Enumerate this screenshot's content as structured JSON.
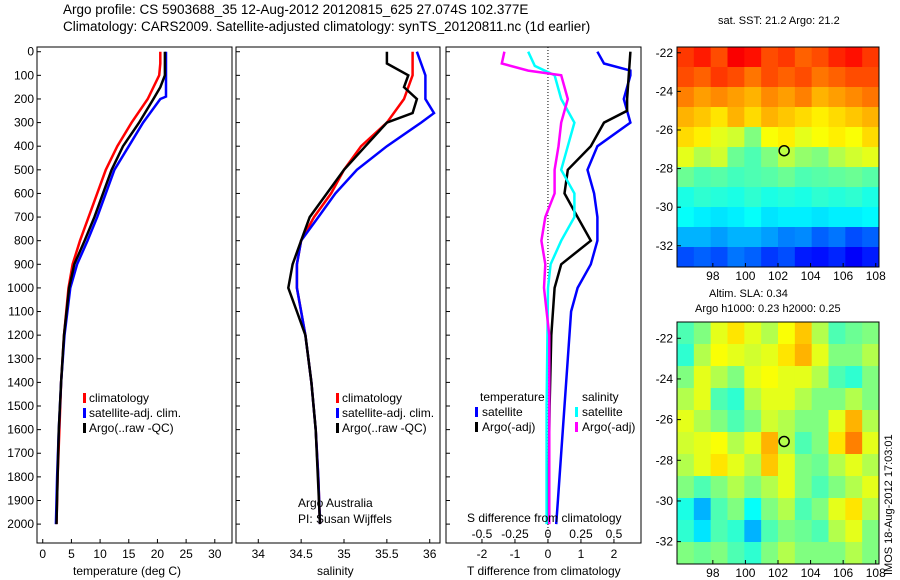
{
  "title": {
    "line1": "Argo profile: CS 5903688_35 12-Aug-2012 20120815_625 27.074S 102.377E",
    "line2": "Climatology: CARS2009. Satellite-adjusted climatology: synTS_20120811.nc (1d earlier)"
  },
  "colors": {
    "climatology": "#ff0000",
    "satellite": "#0000ff",
    "argo": "#000000",
    "sal_sat": "#00ffff",
    "sal_argo": "#ff00ff"
  },
  "chart_data": [
    {
      "type": "line",
      "name": "temperature",
      "xlabel": "temperature (deg C)",
      "xlim": [
        -1,
        33
      ],
      "ylim": [
        2080,
        -20
      ],
      "xticks": [
        0,
        5,
        10,
        15,
        20,
        25,
        30
      ],
      "yticks": [
        0,
        100,
        200,
        300,
        400,
        500,
        600,
        700,
        800,
        900,
        1000,
        1100,
        1200,
        1300,
        1400,
        1500,
        1600,
        1700,
        1800,
        1900,
        2000
      ],
      "legend": [
        "climatology",
        "satellite-adj. clim.",
        "Argo(..raw -QC)"
      ],
      "series": [
        {
          "name": "climatology",
          "color": "#ff0000",
          "depth": [
            0,
            50,
            100,
            200,
            300,
            400,
            500,
            600,
            700,
            800,
            900,
            1000,
            1200,
            1400,
            1600,
            1800,
            2000
          ],
          "values": [
            20.5,
            20.5,
            20.3,
            18.3,
            15.5,
            13,
            11,
            9.5,
            8,
            6.5,
            5.2,
            4.5,
            3.7,
            3.2,
            2.9,
            2.6,
            2.4
          ]
        },
        {
          "name": "satellite-adj. clim.",
          "color": "#0000ff",
          "depth": [
            0,
            190,
            200,
            300,
            400,
            500,
            600,
            700,
            800,
            900,
            1000,
            1200,
            1400,
            1600,
            1800,
            2000
          ],
          "values": [
            21.5,
            21.5,
            20.5,
            17.5,
            15,
            12.5,
            11,
            9.5,
            7.8,
            6,
            4.8,
            3.8,
            3.2,
            2.8,
            2.5,
            2.3
          ]
        },
        {
          "name": "Argo(..raw -QC)",
          "color": "#000000",
          "depth": [
            0,
            100,
            150,
            200,
            300,
            400,
            500,
            600,
            700,
            800,
            900,
            1000,
            1200,
            1400,
            1600,
            1800,
            2000
          ],
          "values": [
            21.3,
            21.3,
            20.5,
            19.3,
            16.8,
            14,
            12,
            10.5,
            9,
            7.3,
            5.5,
            4.6,
            3.7,
            3.2,
            2.8,
            2.6,
            2.4
          ]
        }
      ]
    },
    {
      "type": "line",
      "name": "salinity",
      "xlabel": "salinity",
      "xlim": [
        33.74,
        36.12
      ],
      "ylim": [
        2080,
        -20
      ],
      "xticks": [
        34,
        34.5,
        35,
        35.5,
        36
      ],
      "legend": [
        "climatology",
        "satellite-adj. clim.",
        "Argo(..raw -QC)"
      ],
      "annotation": [
        "Argo Australia",
        "PI: Susan Wijffels"
      ],
      "series": [
        {
          "name": "climatology",
          "color": "#ff0000",
          "depth": [
            0,
            100,
            200,
            300,
            400,
            500,
            600,
            700,
            800,
            900,
            1000,
            1200,
            1400,
            1600,
            1800,
            2000
          ],
          "values": [
            35.8,
            35.8,
            35.7,
            35.5,
            35.2,
            35.0,
            34.85,
            34.65,
            34.5,
            34.45,
            34.45,
            34.55,
            34.62,
            34.67,
            34.7,
            34.72
          ]
        },
        {
          "name": "satellite-adj. clim.",
          "color": "#0000ff",
          "depth": [
            0,
            100,
            200,
            260,
            300,
            400,
            500,
            600,
            700,
            800,
            900,
            1000,
            1200,
            1400,
            1600,
            1800,
            2000
          ],
          "values": [
            35.85,
            35.95,
            35.95,
            36.05,
            35.9,
            35.5,
            35.15,
            34.9,
            34.7,
            34.5,
            34.45,
            34.45,
            34.55,
            34.62,
            34.67,
            34.7,
            34.72
          ]
        },
        {
          "name": "Argo(..raw -QC)",
          "color": "#000000",
          "depth": [
            0,
            50,
            100,
            150,
            200,
            260,
            300,
            400,
            500,
            600,
            700,
            800,
            900,
            1000,
            1100,
            1200,
            1400,
            1600,
            2000
          ],
          "values": [
            35.5,
            35.5,
            35.75,
            35.7,
            35.85,
            35.8,
            35.5,
            35.25,
            35,
            34.8,
            34.6,
            34.5,
            34.4,
            34.35,
            34.45,
            34.55,
            34.62,
            34.67,
            34.72
          ]
        }
      ]
    },
    {
      "type": "line",
      "name": "differences",
      "xlabel": "T difference from climatology",
      "xlabel2": "S difference from climatology",
      "xlim": [
        -3.09,
        2.82
      ],
      "ylim": [
        2080,
        -20
      ],
      "xticks": [
        -2,
        -1,
        0,
        1,
        2
      ],
      "xticks2": [
        -0.5,
        -0.25,
        0,
        0.25,
        0.5
      ],
      "legend": {
        "temperature": "temperature",
        "salinity": "salinity",
        "t_sat": "satellite",
        "t_argo": "Argo(-adj)",
        "s_sat": "satellite",
        "s_argo": "Argo(-adj)"
      },
      "series": [
        {
          "name": "T satellite",
          "color": "#0000ff",
          "scale": 1,
          "depth": [
            0,
            50,
            80,
            100,
            200,
            300,
            400,
            500,
            600,
            700,
            800,
            900,
            1000,
            1100,
            1300,
            1500,
            1700,
            1900,
            2000
          ],
          "values": [
            1.5,
            1.7,
            2.5,
            2.5,
            2.3,
            2.5,
            1.5,
            1.2,
            1.4,
            1.5,
            1.5,
            1.3,
            0.9,
            0.7,
            0.6,
            0.5,
            0.4,
            0.3,
            0.25
          ]
        },
        {
          "name": "T Argo(-adj)",
          "color": "#000000",
          "scale": 1,
          "depth": [
            0,
            200,
            250,
            300,
            400,
            500,
            600,
            700,
            800,
            900,
            1000,
            1200,
            1500,
            2000
          ],
          "values": [
            2.5,
            2.4,
            2.4,
            1.7,
            1.3,
            0.6,
            0.5,
            0.9,
            1.3,
            0.4,
            0.2,
            0.1,
            0.05,
            0
          ]
        },
        {
          "name": "S satellite",
          "color": "#00ffff",
          "scale": 4,
          "depth": [
            0,
            60,
            100,
            200,
            300,
            400,
            500,
            600,
            700,
            800,
            900,
            1000,
            1500,
            2000
          ],
          "values": [
            -0.15,
            -0.1,
            0.05,
            0.1,
            0.2,
            0.15,
            0.1,
            0.2,
            0.2,
            0.1,
            0.02,
            0,
            -0.01,
            -0.01
          ]
        },
        {
          "name": "S Argo(-adj)",
          "color": "#ff00ff",
          "scale": 4,
          "depth": [
            0,
            50,
            80,
            100,
            200,
            300,
            400,
            500,
            600,
            700,
            800,
            900,
            1000,
            1100,
            1200,
            2000
          ],
          "values": [
            -0.33,
            -0.35,
            -0.15,
            0.1,
            0.15,
            0.1,
            0.08,
            0.05,
            0.05,
            -0.02,
            -0.05,
            -0.02,
            -0.03,
            -0.01,
            0.01,
            0.01
          ]
        }
      ]
    },
    {
      "type": "heatmap",
      "name": "sst-map",
      "title": "sat. SST: 21.2 Argo: 21.2",
      "xlim": [
        95.8,
        108.2
      ],
      "ylim": [
        -33.1,
        -21.7
      ],
      "xticks": [
        98,
        100,
        102,
        104,
        106,
        108
      ],
      "yticks": [
        -22,
        -24,
        -26,
        -28,
        -30,
        -32
      ],
      "marker": [
        102.377,
        -27.074
      ],
      "grid": [
        [
          0.82,
          0.85,
          0.8,
          0.88,
          0.86,
          0.8,
          0.82,
          0.78,
          0.8,
          0.84,
          0.86,
          0.82
        ],
        [
          0.8,
          0.78,
          0.82,
          0.8,
          0.76,
          0.8,
          0.78,
          0.8,
          0.76,
          0.78,
          0.8,
          0.8
        ],
        [
          0.75,
          0.72,
          0.74,
          0.72,
          0.7,
          0.74,
          0.72,
          0.75,
          0.7,
          0.72,
          0.74,
          0.76
        ],
        [
          0.7,
          0.68,
          0.65,
          0.7,
          0.66,
          0.7,
          0.68,
          0.66,
          0.64,
          0.66,
          0.68,
          0.7
        ],
        [
          0.66,
          0.64,
          0.6,
          0.58,
          0.5,
          0.62,
          0.64,
          0.6,
          0.62,
          0.64,
          0.62,
          0.66
        ],
        [
          0.6,
          0.55,
          0.58,
          0.48,
          0.45,
          0.5,
          0.56,
          0.52,
          0.5,
          0.55,
          0.58,
          0.6
        ],
        [
          0.48,
          0.45,
          0.46,
          0.44,
          0.45,
          0.46,
          0.48,
          0.45,
          0.46,
          0.47,
          0.48,
          0.46
        ],
        [
          0.4,
          0.42,
          0.41,
          0.4,
          0.42,
          0.4,
          0.41,
          0.4,
          0.42,
          0.41,
          0.42,
          0.4
        ],
        [
          0.38,
          0.36,
          0.35,
          0.36,
          0.38,
          0.35,
          0.36,
          0.36,
          0.35,
          0.36,
          0.36,
          0.37
        ],
        [
          0.3,
          0.3,
          0.28,
          0.3,
          0.3,
          0.28,
          0.25,
          0.26,
          0.22,
          0.24,
          0.2,
          0.22
        ],
        [
          0.2,
          0.22,
          0.2,
          0.24,
          0.22,
          0.18,
          0.2,
          0.15,
          0.14,
          0.16,
          0.12,
          0.15
        ]
      ]
    },
    {
      "type": "heatmap",
      "name": "sla-map",
      "title": "Altim. SLA: 0.34",
      "subtitle": "Argo h1000: 0.23 h2000: 0.25",
      "xlim": [
        95.8,
        108.2
      ],
      "ylim": [
        -33.1,
        -21.2
      ],
      "xticks": [
        98,
        100,
        102,
        104,
        106,
        108
      ],
      "yticks": [
        -22,
        -24,
        -26,
        -28,
        -30,
        -32
      ],
      "marker": [
        102.377,
        -27.074
      ],
      "grid": [
        [
          0.45,
          0.5,
          0.6,
          0.65,
          0.6,
          0.55,
          0.62,
          0.68,
          0.55,
          0.45,
          0.48,
          0.5
        ],
        [
          0.42,
          0.55,
          0.62,
          0.6,
          0.58,
          0.6,
          0.65,
          0.7,
          0.6,
          0.5,
          0.5,
          0.55
        ],
        [
          0.5,
          0.6,
          0.55,
          0.5,
          0.6,
          0.62,
          0.6,
          0.6,
          0.55,
          0.45,
          0.42,
          0.5
        ],
        [
          0.55,
          0.6,
          0.45,
          0.42,
          0.55,
          0.6,
          0.6,
          0.55,
          0.5,
          0.5,
          0.55,
          0.5
        ],
        [
          0.6,
          0.55,
          0.5,
          0.45,
          0.5,
          0.58,
          0.55,
          0.5,
          0.5,
          0.6,
          0.7,
          0.55
        ],
        [
          0.58,
          0.6,
          0.62,
          0.55,
          0.6,
          0.7,
          0.55,
          0.45,
          0.5,
          0.65,
          0.75,
          0.6
        ],
        [
          0.55,
          0.6,
          0.65,
          0.6,
          0.55,
          0.68,
          0.6,
          0.5,
          0.48,
          0.55,
          0.6,
          0.55
        ],
        [
          0.5,
          0.45,
          0.5,
          0.55,
          0.5,
          0.55,
          0.6,
          0.5,
          0.45,
          0.5,
          0.55,
          0.6
        ],
        [
          0.4,
          0.3,
          0.45,
          0.5,
          0.38,
          0.5,
          0.55,
          0.45,
          0.5,
          0.6,
          0.65,
          0.55
        ],
        [
          0.42,
          0.35,
          0.45,
          0.42,
          0.3,
          0.45,
          0.5,
          0.48,
          0.45,
          0.55,
          0.6,
          0.5
        ],
        [
          0.5,
          0.48,
          0.5,
          0.45,
          0.42,
          0.5,
          0.55,
          0.5,
          0.5,
          0.5,
          0.55,
          0.5
        ]
      ]
    }
  ],
  "footer": {
    "stamp": "IMOS 18-Aug-2012 17:03:01"
  }
}
